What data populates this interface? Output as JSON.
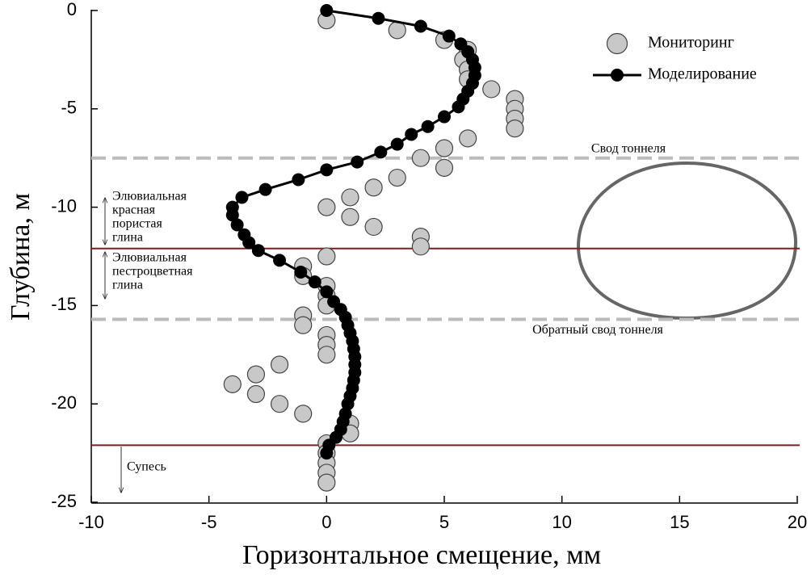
{
  "chart_data": {
    "type": "scatter",
    "x_label": "Горизонтальное смещение, мм",
    "y_label": "Глубина, м",
    "xlim": [
      -10,
      20
    ],
    "xticks": [
      -10,
      -5,
      0,
      5,
      10,
      15,
      20
    ],
    "ylim": [
      -25,
      0
    ],
    "yticks": [
      0,
      -5,
      -10,
      -15,
      -20,
      -25
    ],
    "legend": "upper right",
    "series": [
      {
        "name": "Мониторинг",
        "color": "#c8c8c8",
        "mode": "markers",
        "x": [
          0,
          3,
          5,
          6,
          5.8,
          6,
          6,
          7,
          8,
          8,
          8,
          8,
          6,
          5,
          4,
          5,
          3,
          2,
          1,
          0,
          1,
          2,
          4,
          4,
          0,
          -1,
          -1,
          0,
          0,
          0,
          -1,
          -1,
          0,
          0,
          0,
          -2,
          -3,
          -4,
          -3,
          -2,
          -1,
          1,
          1,
          0,
          0,
          0,
          0,
          0
        ],
        "values": [
          -0.5,
          -1,
          -1.5,
          -2,
          -2.5,
          -3,
          -3.5,
          -4,
          -4.5,
          -5,
          -5.5,
          -6,
          -6.5,
          -7,
          -7.5,
          -8,
          -8.5,
          -9,
          -9.5,
          -10,
          -10.5,
          -11,
          -11.5,
          -12,
          -12.5,
          -13,
          -13.5,
          -14,
          -14.5,
          -15,
          -15.5,
          -16,
          -16.5,
          -17,
          -17.5,
          -18,
          -18.5,
          -19,
          -19.5,
          -20,
          -20.5,
          -21,
          -21.5,
          -22,
          -22.5,
          -23,
          -23.5,
          -24
        ]
      },
      {
        "name": "Моделирование",
        "color": "#000000",
        "mode": "lines+markers",
        "x": [
          0,
          2.2,
          4,
          5.2,
          5.7,
          6,
          6.2,
          6.3,
          6.3,
          6.2,
          6,
          5.8,
          5.6,
          5,
          4.3,
          3.6,
          3,
          2.3,
          1.3,
          0,
          -1.2,
          -2.6,
          -3.6,
          -4,
          -4,
          -3.8,
          -3.5,
          -3.3,
          -2.9,
          -2,
          -1.1,
          -0.5,
          0,
          0.3,
          0.6,
          0.8,
          0.9,
          1,
          1.1,
          1.15,
          1.2,
          1.2,
          1.2,
          1.15,
          1.1,
          1,
          0.9,
          0.8,
          0.7,
          0.6,
          0.4,
          0.1,
          0
        ],
        "values": [
          0,
          -0.4,
          -0.8,
          -1.3,
          -1.7,
          -2.1,
          -2.5,
          -2.9,
          -3.3,
          -3.7,
          -4.1,
          -4.5,
          -4.9,
          -5.4,
          -5.9,
          -6.3,
          -6.8,
          -7.2,
          -7.7,
          -8.1,
          -8.6,
          -9.1,
          -9.5,
          -10,
          -10.4,
          -10.9,
          -11.4,
          -11.8,
          -12.2,
          -12.7,
          -13.3,
          -13.8,
          -14.3,
          -14.8,
          -15.2,
          -15.6,
          -16,
          -16.4,
          -16.8,
          -17.2,
          -17.6,
          -18,
          -18.4,
          -18.8,
          -19.2,
          -19.6,
          -20,
          -20.5,
          -20.9,
          -21.3,
          -21.7,
          -22.1,
          -22.5
        ]
      }
    ],
    "reference_lines": [
      {
        "y": -7.5,
        "style": "dashed",
        "color": "#bbbbbb",
        "label": "Свод тоннеля"
      },
      {
        "y": -12.1,
        "style": "solid",
        "color": "#8b1a1a"
      },
      {
        "y": -15.7,
        "style": "dashed",
        "color": "#bbbbbb",
        "label": "Обратный свод тоннеля"
      },
      {
        "y": -22.1,
        "style": "solid",
        "color": "#8b1a1a"
      }
    ],
    "annotations": [
      {
        "lines": [
          "Элювиальная",
          "красная",
          "пористая",
          "глина"
        ]
      },
      {
        "lines": [
          "Элювиальная",
          "пестроцветная",
          "глина"
        ]
      },
      {
        "lines": [
          "Супесь"
        ]
      }
    ]
  }
}
